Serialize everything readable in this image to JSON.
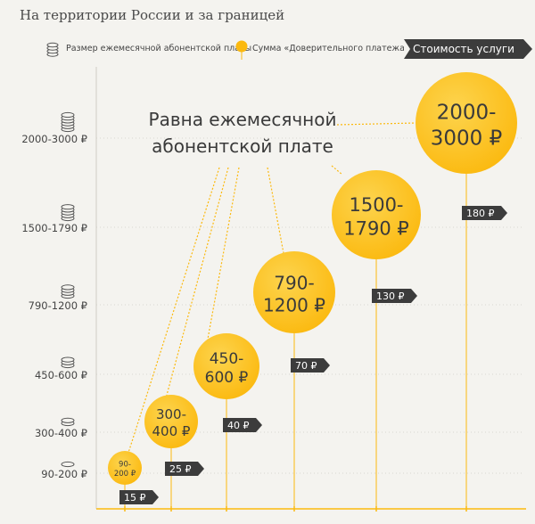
{
  "title": "На территории России и за границей",
  "legend": {
    "fee_label": "Размер ежемесячной абонентской платы",
    "trust_label": "Сумма «Доверительного платежа»",
    "cost_label": "Стоимость услуги",
    "coins_icon": "coin-stack-icon",
    "balloon_icon": "balloon-icon"
  },
  "colors": {
    "accent": "#fbb90f",
    "accent_light": "#fdd44e",
    "badge": "#3c3c3c",
    "background": "#f4f3ef",
    "grid": "#d9d7d0"
  },
  "chart_data": {
    "type": "bubble",
    "ylabels": [
      "90-200 ₽",
      "300-400 ₽",
      "450-600 ₽",
      "790-1200 ₽",
      "1500-1790 ₽",
      "2000-3000 ₽"
    ],
    "bubbles": [
      {
        "label1": "90-",
        "label2": "200 ₽",
        "cost": "15 ₽"
      },
      {
        "label1": "300-",
        "label2": "400 ₽",
        "cost": "25 ₽"
      },
      {
        "label1": "450-",
        "label2": "600 ₽",
        "cost": "40 ₽"
      },
      {
        "label1": "790-",
        "label2": "1200 ₽",
        "cost": "70 ₽"
      },
      {
        "label1": "1500-",
        "label2": "1790 ₽",
        "cost": "130 ₽"
      },
      {
        "label1": "2000-",
        "label2": "3000 ₽",
        "cost": "180 ₽"
      }
    ],
    "annotation": {
      "line1": "Равна ежемесячной",
      "line2": "абонентской плате"
    }
  }
}
